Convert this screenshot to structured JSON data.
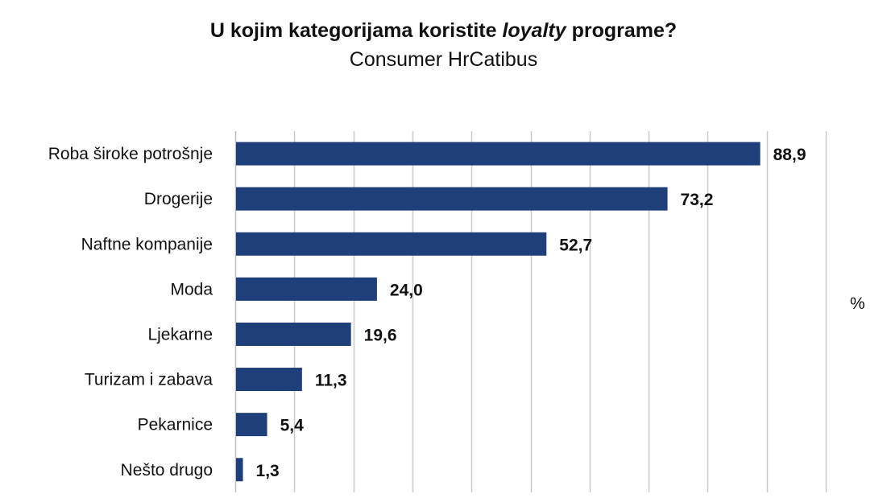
{
  "title": {
    "before": "U kojim kategorijama koristite ",
    "italic": "loyalty",
    "after": " programe?"
  },
  "subtitle": "Consumer HrCatibus",
  "unit": "%",
  "colors": {
    "bar": "#1f3f7a",
    "grid": "#c9c9c9",
    "axis": "#bdbdbd"
  },
  "chart_data": {
    "type": "bar",
    "orientation": "horizontal",
    "title": "U kojim kategorijama koristite loyalty programe?",
    "subtitle": "Consumer HrCatibus",
    "categories": [
      "Roba široke potrošnje",
      "Drogerije",
      "Naftne kompanije",
      "Moda",
      "Ljekarne",
      "Turizam i zabava",
      "Pekarnice",
      "Nešto drugo"
    ],
    "values": [
      88.9,
      73.2,
      52.7,
      24.0,
      19.6,
      11.3,
      5.4,
      1.3
    ],
    "value_labels": [
      "88,9",
      "73,2",
      "52,7",
      "24,0",
      "19,6",
      "11,3",
      "5,4",
      "1,3"
    ],
    "xlim": [
      0,
      100
    ],
    "grid": true,
    "legend": "none",
    "unit": "%"
  }
}
